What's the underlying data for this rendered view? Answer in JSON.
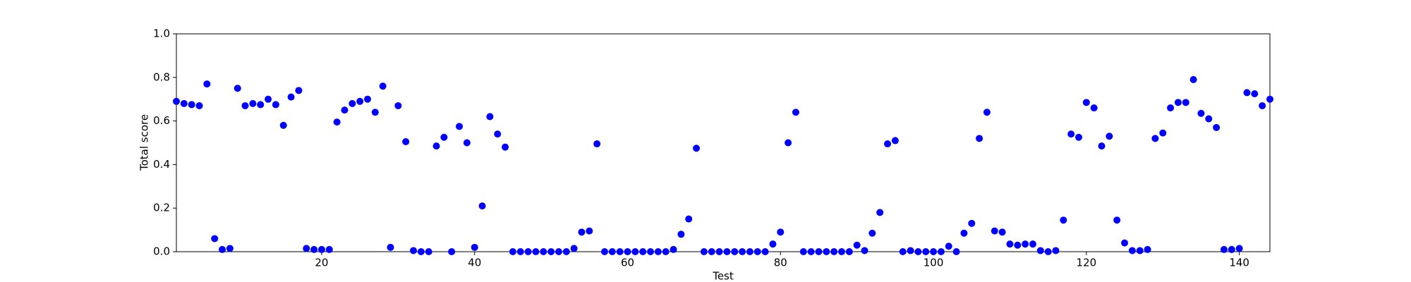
{
  "chart_data": {
    "type": "scatter",
    "xlabel": "Test",
    "ylabel": "Total score",
    "color": "#0000ff",
    "x": [
      1,
      2,
      3,
      4,
      5,
      6,
      7,
      8,
      9,
      10,
      11,
      12,
      13,
      14,
      15,
      16,
      17,
      18,
      19,
      20,
      21,
      22,
      23,
      24,
      25,
      26,
      27,
      28,
      29,
      30,
      31,
      32,
      33,
      34,
      35,
      36,
      37,
      38,
      39,
      40,
      41,
      42,
      43,
      44,
      45,
      46,
      47,
      48,
      49,
      50,
      51,
      52,
      53,
      54,
      55,
      56,
      57,
      58,
      59,
      60,
      61,
      62,
      63,
      64,
      65,
      66,
      67,
      68,
      69,
      70,
      71,
      72,
      73,
      74,
      75,
      76,
      77,
      78,
      79,
      80,
      81,
      82,
      83,
      84,
      85,
      86,
      87,
      88,
      89,
      90,
      91,
      92,
      93,
      94,
      95,
      96,
      97,
      98,
      99,
      100,
      101,
      102,
      103,
      104,
      105,
      106,
      107,
      108,
      109,
      110,
      111,
      112,
      113,
      114,
      115,
      116,
      117,
      118,
      119,
      120,
      121,
      122,
      123,
      124,
      125,
      126,
      127,
      128,
      129,
      130,
      131,
      132,
      133,
      134,
      135,
      136,
      137,
      138,
      139,
      140,
      141,
      142,
      143,
      144
    ],
    "values": [
      0.69,
      0.68,
      0.675,
      0.67,
      0.77,
      0.06,
      0.01,
      0.015,
      0.75,
      0.67,
      0.68,
      0.675,
      0.7,
      0.675,
      0.58,
      0.71,
      0.74,
      0.015,
      0.01,
      0.01,
      0.01,
      0.595,
      0.65,
      0.68,
      0.69,
      0.7,
      0.64,
      0.76,
      0.02,
      0.67,
      0.505,
      0.005,
      0.0,
      0.0,
      0.485,
      0.525,
      0.0,
      0.575,
      0.5,
      0.02,
      0.21,
      0.62,
      0.54,
      0.48,
      0.0,
      0.0,
      0.0,
      0.0,
      0.0,
      0.0,
      0.0,
      0.0,
      0.015,
      0.09,
      0.095,
      0.495,
      0.0,
      0.0,
      0.0,
      0.0,
      0.0,
      0.0,
      0.0,
      0.0,
      0.0,
      0.01,
      0.08,
      0.15,
      0.475,
      0.0,
      0.0,
      0.0,
      0.0,
      0.0,
      0.0,
      0.0,
      0.0,
      0.0,
      0.035,
      0.09,
      0.5,
      0.64,
      0.0,
      0.0,
      0.0,
      0.0,
      0.0,
      0.0,
      0.0,
      0.03,
      0.005,
      0.085,
      0.18,
      0.495,
      0.51,
      0.0,
      0.005,
      0.0,
      0.0,
      0.0,
      0.0,
      0.025,
      0.0,
      0.085,
      0.13,
      0.52,
      0.64,
      0.095,
      0.09,
      0.035,
      0.03,
      0.035,
      0.035,
      0.005,
      0.0,
      0.005,
      0.145,
      0.54,
      0.525,
      0.685,
      0.66,
      0.485,
      0.53,
      0.145,
      0.04,
      0.005,
      0.005,
      0.01,
      0.52,
      0.545,
      0.66,
      0.685,
      0.685,
      0.79,
      0.635,
      0.61,
      0.57,
      0.01,
      0.01,
      0.015,
      0.73,
      0.725,
      0.67,
      0.7
    ],
    "xlim": [
      1,
      144
    ],
    "xticks": [
      20,
      40,
      60,
      80,
      100,
      120,
      140
    ],
    "ylim": [
      0,
      1
    ],
    "yticks": [
      {
        "value": 0,
        "label": "0.0"
      },
      0.2,
      0.4,
      0.6,
      0.8,
      {
        "value": 1,
        "label": "1.0"
      }
    ]
  }
}
